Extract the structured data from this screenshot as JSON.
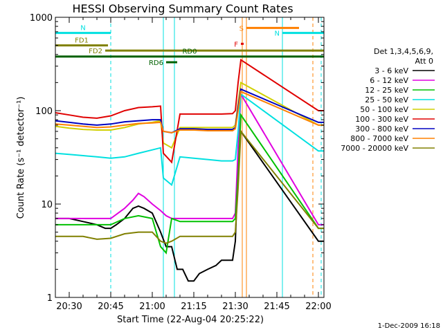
{
  "chart_data": {
    "type": "line",
    "title": "HESSI Observing Summary Count Rates",
    "xlabel": "Start Time (22-Aug-04 20:25:22)",
    "ylabel": "Count Rate (s⁻¹ detector⁻¹)",
    "x_unit": "minutes after 20:25:22",
    "xlim": [
      0,
      97
    ],
    "ylim": [
      1,
      1000
    ],
    "y_scale": "log",
    "x_ticks": [
      {
        "x": 5,
        "label": "20:30"
      },
      {
        "x": 20,
        "label": "20:45"
      },
      {
        "x": 35,
        "label": "21:00"
      },
      {
        "x": 50,
        "label": "21:15"
      },
      {
        "x": 65,
        "label": "21:30"
      },
      {
        "x": 80,
        "label": "21:45"
      },
      {
        "x": 95,
        "label": "22:00"
      }
    ],
    "y_ticks": [
      {
        "y": 1,
        "label": "1"
      },
      {
        "y": 10,
        "label": "10"
      },
      {
        "y": 100,
        "label": "100"
      },
      {
        "y": 1000,
        "label": "1000"
      }
    ],
    "legend_title": [
      "Det 1,3,4,5,6,9,",
      "Att 0"
    ],
    "legend_placement": "right",
    "series": [
      {
        "name": "3 - 6 keV",
        "color": "#000000",
        "x": [
          0,
          5,
          10,
          15,
          18,
          20,
          22,
          25,
          28,
          30,
          32,
          35,
          38,
          40,
          42,
          44,
          46,
          48,
          50,
          52,
          55,
          58,
          60,
          62,
          64,
          65,
          66,
          67,
          95,
          97
        ],
        "y": [
          7,
          7,
          6.5,
          6,
          5.5,
          5.5,
          6,
          7,
          9,
          9.5,
          9,
          8,
          5,
          3.5,
          3.5,
          2,
          2,
          1.5,
          1.5,
          1.8,
          2,
          2.2,
          2.5,
          2.5,
          2.5,
          4,
          25,
          60,
          4,
          4
        ]
      },
      {
        "name": "6 - 12 keV",
        "color": "#e000e0",
        "x": [
          0,
          5,
          10,
          15,
          20,
          25,
          28,
          30,
          32,
          35,
          38,
          40,
          42,
          45,
          50,
          55,
          60,
          64,
          65,
          66,
          67,
          95,
          97
        ],
        "y": [
          7,
          7,
          7,
          7,
          7,
          9,
          11,
          13,
          12,
          10,
          8.5,
          7.5,
          7,
          7,
          7,
          7,
          7,
          7,
          8,
          40,
          150,
          6,
          6
        ]
      },
      {
        "name": "12 - 25 keV",
        "color": "#00c000",
        "x": [
          0,
          5,
          10,
          15,
          20,
          25,
          30,
          35,
          38,
          40,
          42,
          45,
          50,
          55,
          60,
          64,
          65,
          66,
          67,
          95,
          97
        ],
        "y": [
          6,
          6,
          6,
          6,
          6,
          7,
          7.5,
          7,
          3.5,
          3,
          7,
          6.5,
          6.5,
          6.5,
          6.5,
          6.5,
          7,
          20,
          90,
          5.5,
          5.5
        ]
      },
      {
        "name": "25 - 50 keV",
        "color": "#00e0e0",
        "x": [
          0,
          5,
          10,
          15,
          20,
          25,
          30,
          35,
          38,
          39,
          42,
          45,
          50,
          55,
          60,
          64,
          65,
          66,
          67,
          95,
          97
        ],
        "y": [
          35,
          34,
          33,
          32,
          31,
          32,
          35,
          38,
          40,
          19,
          16,
          32,
          31,
          30,
          29,
          29,
          30,
          60,
          150,
          37,
          37
        ]
      },
      {
        "name": "50 - 100 keV",
        "color": "#d0d000",
        "x": [
          0,
          5,
          10,
          15,
          20,
          25,
          30,
          35,
          38,
          39,
          42,
          45,
          50,
          55,
          60,
          64,
          65,
          66,
          67,
          95,
          97
        ],
        "y": [
          68,
          65,
          63,
          62,
          62,
          66,
          72,
          75,
          78,
          45,
          40,
          66,
          66,
          66,
          66,
          66,
          70,
          120,
          200,
          70,
          70
        ]
      },
      {
        "name": "100 - 300 keV",
        "color": "#e00000",
        "x": [
          0,
          5,
          10,
          15,
          20,
          25,
          30,
          35,
          38,
          39,
          42,
          45,
          50,
          55,
          60,
          64,
          65,
          66,
          67,
          95,
          97
        ],
        "y": [
          95,
          90,
          85,
          83,
          88,
          100,
          108,
          110,
          112,
          35,
          28,
          92,
          92,
          92,
          92,
          93,
          100,
          200,
          350,
          100,
          100
        ]
      },
      {
        "name": "300 - 800 keV",
        "color": "#0000c0",
        "x": [
          0,
          5,
          10,
          15,
          20,
          25,
          30,
          35,
          38,
          39,
          42,
          45,
          50,
          55,
          60,
          64,
          65,
          66,
          67,
          95,
          97
        ],
        "y": [
          78,
          75,
          72,
          70,
          72,
          76,
          78,
          80,
          80,
          60,
          58,
          64,
          64,
          63,
          63,
          63,
          66,
          110,
          170,
          75,
          75
        ]
      },
      {
        "name": "800 - 7000 keV",
        "color": "#ff8000",
        "x": [
          0,
          5,
          10,
          15,
          20,
          25,
          30,
          35,
          38,
          39,
          42,
          45,
          50,
          55,
          60,
          64,
          65,
          66,
          67,
          95,
          97
        ],
        "y": [
          72,
          70,
          68,
          66,
          67,
          70,
          73,
          74,
          75,
          60,
          58,
          62,
          62,
          61,
          61,
          61,
          64,
          100,
          160,
          70,
          70
        ]
      },
      {
        "name": "7000 - 20000 keV",
        "color": "#808000",
        "x": [
          0,
          5,
          10,
          15,
          20,
          25,
          30,
          35,
          38,
          40,
          42,
          45,
          50,
          55,
          60,
          64,
          65,
          66,
          67,
          95,
          97
        ],
        "y": [
          4.5,
          4.5,
          4.5,
          4.2,
          4.3,
          4.8,
          5,
          5,
          4,
          3.8,
          4,
          4.5,
          4.5,
          4.5,
          4.5,
          4.5,
          5,
          15,
          60,
          5.5,
          5.5
        ]
      }
    ],
    "mode_bars": [
      {
        "label": "N",
        "color": "#00e0e0",
        "x_start": 0,
        "x_end": 20,
        "y": 680
      },
      {
        "label": "N",
        "color": "#00e0e0",
        "x_start": 82,
        "x_end": 97,
        "y": 680
      },
      {
        "label": "S",
        "color": "#ff8000",
        "x_start": 69,
        "x_end": 88,
        "y": 770
      },
      {
        "label": "F",
        "color": "#e00000",
        "x_start": 67,
        "x_end": 68,
        "y": 520
      },
      {
        "label": "FD1",
        "color": "#808000",
        "x_start": 0,
        "x_end": 19,
        "y": 500
      },
      {
        "label": "FD2",
        "color": "#808000",
        "x_start": 18,
        "x_end": 97,
        "y": 440
      },
      {
        "label": "RD0",
        "color": "#006000",
        "x_start": 0,
        "x_end": 97,
        "y": 380
      },
      {
        "label": "RD6",
        "color": "#006000",
        "x_start": 40,
        "x_end": 44,
        "y": 330
      }
    ],
    "vlines": [
      {
        "x": 0,
        "color": "#00e0e0",
        "style": "solid"
      },
      {
        "x": 20,
        "color": "#00e0e0",
        "style": "dashed"
      },
      {
        "x": 39,
        "color": "#00e0e0",
        "style": "solid"
      },
      {
        "x": 43,
        "color": "#00e0e0",
        "style": "solid"
      },
      {
        "x": 67.5,
        "color": "#ff8000",
        "style": "solid"
      },
      {
        "x": 69,
        "color": "#ff8000",
        "style": "solid"
      },
      {
        "x": 82,
        "color": "#00e0e0",
        "style": "solid"
      },
      {
        "x": 93,
        "color": "#ff8000",
        "style": "dashed"
      },
      {
        "x": 96,
        "color": "#00e0e0",
        "style": "dashed"
      }
    ],
    "footer_text": "1-Dec-2009 16:18"
  }
}
